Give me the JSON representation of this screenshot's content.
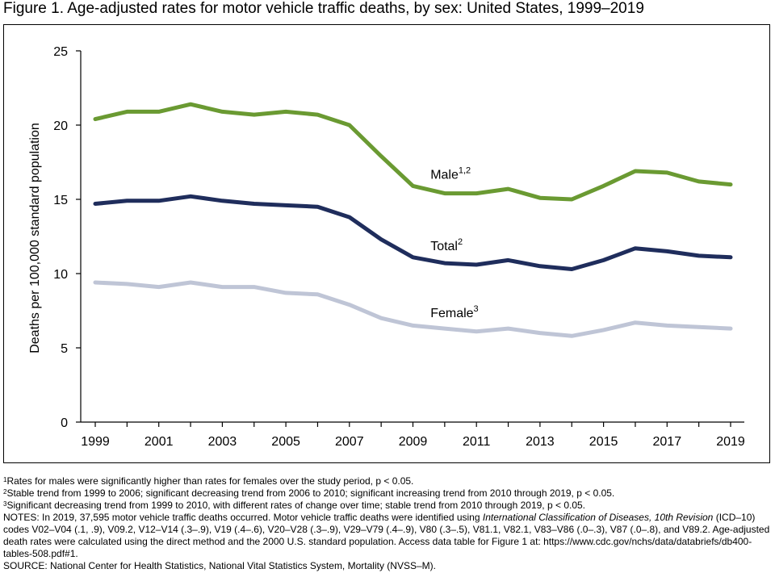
{
  "title": "Figure 1. Age-adjusted rates for motor vehicle traffic deaths, by sex: United States, 1999–2019",
  "chart_data": {
    "type": "line",
    "ylabel": "Deaths per 100,000 standard population",
    "xlabel": "",
    "ylim": [
      0,
      25
    ],
    "yticks": [
      0,
      5,
      10,
      15,
      20,
      25
    ],
    "x": [
      1999,
      2000,
      2001,
      2002,
      2003,
      2004,
      2005,
      2006,
      2007,
      2008,
      2009,
      2010,
      2011,
      2012,
      2013,
      2014,
      2015,
      2016,
      2017,
      2018,
      2019
    ],
    "xtick_labels": [
      "1999",
      "2001",
      "2003",
      "2005",
      "2007",
      "2009",
      "2011",
      "2013",
      "2015",
      "2017",
      "2019"
    ],
    "grid": false,
    "series": [
      {
        "name": "Male",
        "sup": "1,2",
        "color": "#6a9a32",
        "values": [
          20.4,
          20.9,
          20.9,
          21.4,
          20.9,
          20.7,
          20.9,
          20.7,
          20.0,
          17.9,
          15.9,
          15.4,
          15.4,
          15.7,
          15.1,
          15.0,
          15.9,
          16.9,
          16.8,
          16.2,
          16.0
        ]
      },
      {
        "name": "Total",
        "sup": "2",
        "color": "#1f2d5c",
        "values": [
          14.7,
          14.9,
          14.9,
          15.2,
          14.9,
          14.7,
          14.6,
          14.5,
          13.8,
          12.3,
          11.1,
          10.7,
          10.6,
          10.9,
          10.5,
          10.3,
          10.9,
          11.7,
          11.5,
          11.2,
          11.1
        ]
      },
      {
        "name": "Female",
        "sup": "3",
        "color": "#bfc5d6",
        "values": [
          9.4,
          9.3,
          9.1,
          9.4,
          9.1,
          9.1,
          8.7,
          8.6,
          7.9,
          7.0,
          6.5,
          6.3,
          6.1,
          6.3,
          6.0,
          5.8,
          6.2,
          6.7,
          6.5,
          6.4,
          6.3
        ]
      }
    ]
  },
  "notes": {
    "n1_sup": "1",
    "n1": "Rates for males were significantly higher than rates for females over the study period, p < 0.05.",
    "n2_sup": "2",
    "n2": "Stable trend from 1999 to 2006; significant decreasing trend from 2006 to 2010; significant increasing trend from 2010 through 2019, p < 0.05.",
    "n3_sup": "3",
    "n3": "Significant decreasing trend from 1999 to 2010, with different rates of change over time; stable trend from 2010 through 2019, p < 0.05.",
    "notes_lead": "NOTES: In 2019, 37,595 motor vehicle traffic deaths occurred. Motor vehicle traffic deaths were identified using ",
    "notes_italic": "International Classification of Diseases, 10th Revision",
    "notes_rest": " (ICD–10) codes V02–V04 (.1, .9), V09.2, V12–V14 (.3–.9), V19 (.4–.6), V20–V28 (.3–.9), V29–V79 (.4–.9), V80 (.3–.5), V81.1, V82.1, V83–V86 (.0–.3), V87 (.0–.8), and V89.2. Age-adjusted death rates were calculated using the direct method and the 2000 U.S. standard population. Access data table for Figure 1 at: https://www.cdc.gov/nchs/data/databriefs/db400-tables-508.pdf#1.",
    "source": "SOURCE: National Center for Health Statistics, National Vital Statistics System, Mortality (NVSS–M)."
  }
}
